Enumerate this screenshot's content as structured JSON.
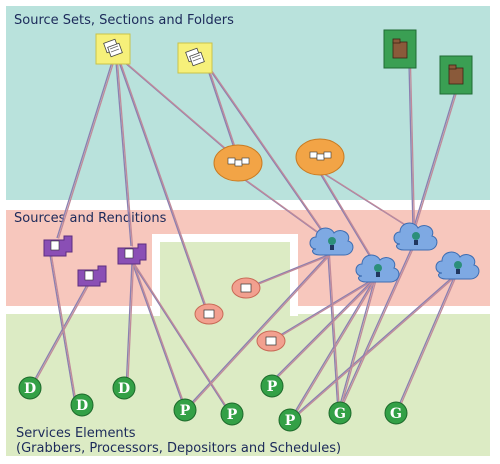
{
  "zones": {
    "top_label": "Source Sets, Sections and Folders",
    "middle_label": "Sources and Renditions",
    "bottom_label_line1": "Services Elements",
    "bottom_label_line2": "(Grabbers, Processors, Depositors and Schedules)"
  },
  "colors": {
    "teal": "#b9e2dc",
    "salmon": "#f7c7bd",
    "green": "#dcebc4",
    "source_set": "#f6f07a",
    "folder": "#3a9f53",
    "section": "#f2a446",
    "source": "#7ea9e3",
    "rendition": "#f2a08f",
    "purple": "#8a4fb5",
    "service": "#33a046",
    "link_a": "#8a7fb0",
    "link_b": "#c08a9a"
  },
  "service_letters": {
    "grabber": "G",
    "processor": "P",
    "depositor": "D"
  },
  "icons": {
    "source_set": "documents-icon",
    "folder": "folder-icon",
    "section": "section-icon",
    "source": "source-icon",
    "rendition": "rendition-icon",
    "purple": "rendition-stack-icon"
  }
}
